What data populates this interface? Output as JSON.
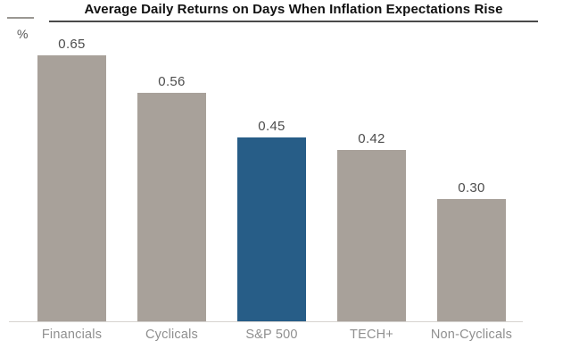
{
  "header": {
    "title": "Average Daily Returns on Days When Inflation Expectations Rise",
    "unit_label": "%"
  },
  "chart_data": {
    "type": "bar",
    "title": "Average Daily Returns on Days When Inflation Expectations Rise",
    "xlabel": "",
    "ylabel": "%",
    "categories": [
      "Financials",
      "Cyclicals",
      "S&P 500",
      "TECH+",
      "Non-Cyclicals"
    ],
    "values": [
      0.65,
      0.56,
      0.45,
      0.42,
      0.3
    ],
    "value_labels": [
      "0.65",
      "0.56",
      "0.45",
      "0.42",
      "0.30"
    ],
    "highlight_category": "S&P 500",
    "ylim": [
      0,
      0.75
    ],
    "grid": false,
    "legend": false,
    "axis_visible": "baseline-only",
    "colors": {
      "bar_default": "#a8a19a",
      "bar_highlight": "#275d87",
      "value_label": "#4d4d4d",
      "category_label": "#8f8f8f",
      "baseline": "#d6d3d0",
      "title_underline": "#4a4a4a",
      "unit_label": "#555555",
      "title_text": "#111111"
    }
  }
}
